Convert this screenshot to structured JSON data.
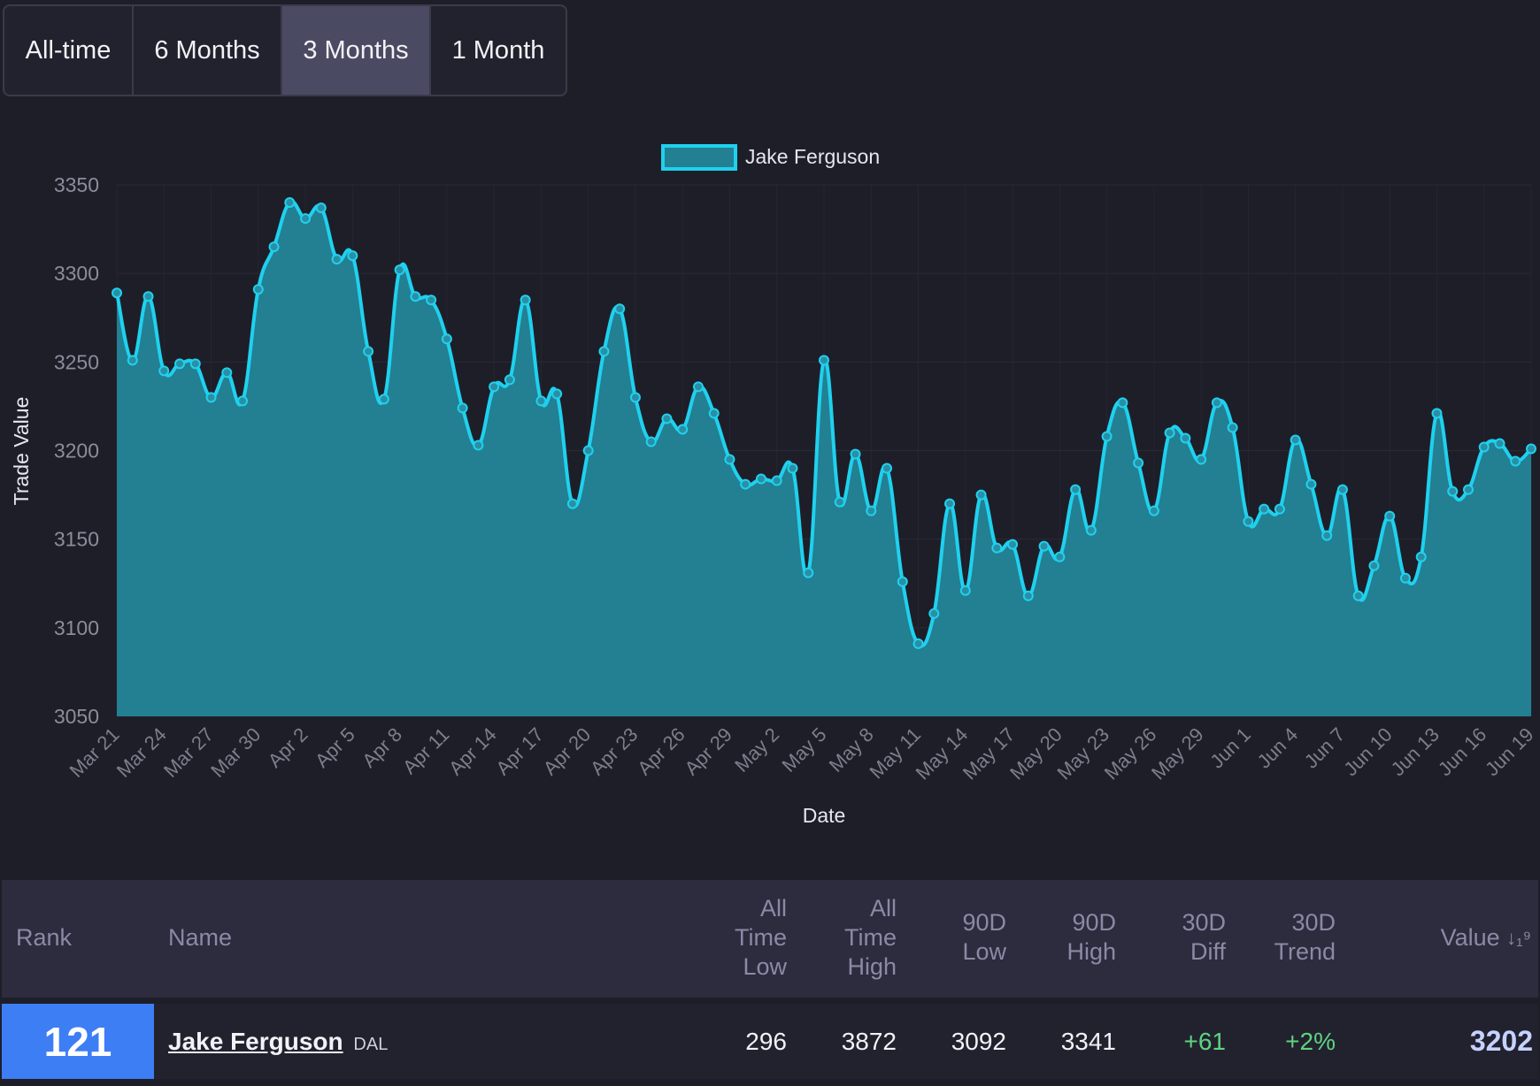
{
  "tabs": [
    "All-time",
    "6 Months",
    "3 Months",
    "1 Month"
  ],
  "active_tab": "3 Months",
  "chart_data": {
    "type": "area",
    "xlabel": "Date",
    "ylabel": "Trade Value",
    "ylim": [
      3050,
      3350
    ],
    "yticks": [
      3050,
      3100,
      3150,
      3200,
      3250,
      3300,
      3350
    ],
    "xticks": [
      "Mar 21",
      "Mar 24",
      "Mar 27",
      "Mar 30",
      "Apr 2",
      "Apr 5",
      "Apr 8",
      "Apr 11",
      "Apr 14",
      "Apr 17",
      "Apr 20",
      "Apr 23",
      "Apr 26",
      "Apr 29",
      "May 2",
      "May 5",
      "May 8",
      "May 11",
      "May 14",
      "May 17",
      "May 20",
      "May 23",
      "May 26",
      "May 29",
      "Jun 1",
      "Jun 4",
      "Jun 7",
      "Jun 10",
      "Jun 13",
      "Jun 16",
      "Jun 19"
    ],
    "legend_position": "top",
    "series": [
      {
        "name": "Jake Ferguson",
        "color": "#1fd1ee",
        "fill": "#237f92",
        "values": [
          3289,
          3251,
          3287,
          3245,
          3249,
          3249,
          3230,
          3244,
          3228,
          3291,
          3315,
          3340,
          3331,
          3337,
          3308,
          3310,
          3256,
          3229,
          3302,
          3287,
          3285,
          3263,
          3224,
          3203,
          3236,
          3240,
          3285,
          3228,
          3232,
          3170,
          3200,
          3256,
          3280,
          3230,
          3205,
          3218,
          3212,
          3236,
          3221,
          3195,
          3181,
          3184,
          3183,
          3190,
          3131,
          3251,
          3171,
          3198,
          3166,
          3190,
          3126,
          3091,
          3108,
          3170,
          3121,
          3175,
          3145,
          3147,
          3118,
          3146,
          3140,
          3178,
          3155,
          3208,
          3227,
          3193,
          3166,
          3210,
          3207,
          3195,
          3227,
          3213,
          3160,
          3167,
          3167,
          3206,
          3181,
          3152,
          3178,
          3118,
          3135,
          3163,
          3128,
          3140,
          3221,
          3177,
          3178,
          3202,
          3204,
          3194,
          3201
        ]
      }
    ]
  },
  "table": {
    "headers": {
      "rank": "Rank",
      "name": "Name",
      "all_time_low": [
        "All",
        "Time",
        "Low"
      ],
      "all_time_high": [
        "All",
        "Time",
        "High"
      ],
      "low_90d": [
        "90D",
        "Low"
      ],
      "high_90d": [
        "90D",
        "High"
      ],
      "diff_30d": [
        "30D",
        "Diff"
      ],
      "trend_30d": [
        "30D",
        "Trend"
      ],
      "value": "Value",
      "sort_icon": "↓₁⁹"
    },
    "row": {
      "rank": "121",
      "name": "Jake Ferguson",
      "team": "DAL",
      "all_time_low": "296",
      "all_time_high": "3872",
      "low_90d": "3092",
      "high_90d": "3341",
      "diff_30d": "+61",
      "trend_30d": "+2%",
      "value": "3202"
    },
    "colors": {
      "positive": "#5fd37f",
      "value": "#c6d2ff",
      "rank_badge": "#3d7ef5"
    }
  }
}
